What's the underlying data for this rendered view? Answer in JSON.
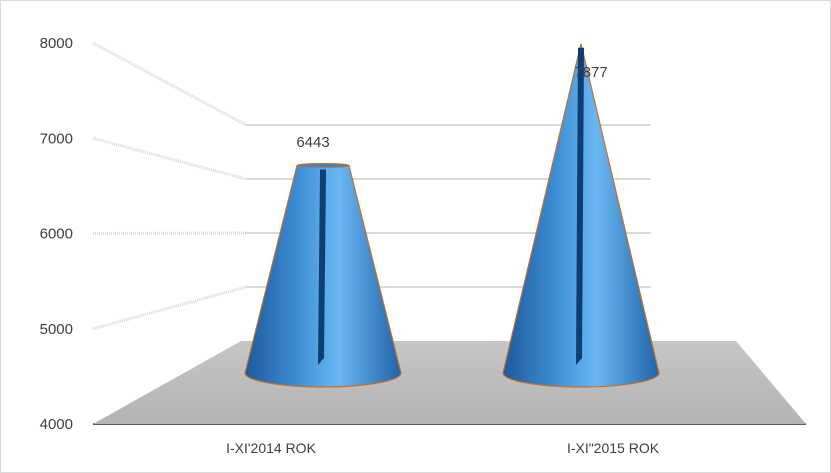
{
  "chart_data": {
    "type": "bar",
    "categories": [
      "I-XI'2014 ROK",
      "I-XI\"2015 ROK"
    ],
    "values": [
      6443,
      7877
    ],
    "data_labels": [
      "6443",
      "7877"
    ],
    "y_ticks": [
      "4000",
      "5000",
      "6000",
      "7000",
      "8000"
    ],
    "ylim": [
      4000,
      8000
    ],
    "title": "",
    "xlabel": "",
    "ylabel": "",
    "grid": true,
    "legend": "none",
    "colors": {
      "bar": "#2e75b6",
      "bar_light": "#5ab0ee",
      "bar_edge": "#c5702c",
      "floor": "#bfbfbf",
      "grid": "#d9d9d9"
    }
  }
}
